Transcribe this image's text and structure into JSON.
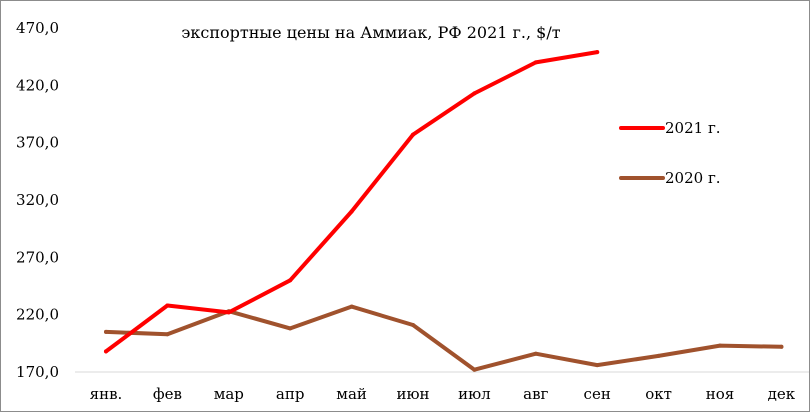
{
  "chart_data": {
    "type": "line",
    "title": "экспортные цены на Аммиак, РФ 2021 г., $/т",
    "xlabel": "",
    "ylabel": "",
    "categories": [
      "янв.",
      "фев",
      "мар",
      "апр",
      "май",
      "июн",
      "июл",
      "авг",
      "сен",
      "окт",
      "ноя",
      "дек"
    ],
    "y_ticks": [
      "170,0",
      "220,0",
      "270,0",
      "320,0",
      "370,0",
      "420,0",
      "470,0"
    ],
    "ylim": [
      170,
      470
    ],
    "grid": false,
    "legend_position": "right",
    "series": [
      {
        "name": "2021 г.",
        "color": "#ff0000",
        "values": [
          188,
          228,
          222,
          250,
          310,
          377,
          413,
          440,
          449,
          null,
          null,
          null
        ]
      },
      {
        "name": "2020 г.",
        "color": "#a0522d",
        "values": [
          205,
          203,
          223,
          208,
          227,
          211,
          172,
          186,
          176,
          184,
          193,
          192
        ]
      }
    ]
  }
}
